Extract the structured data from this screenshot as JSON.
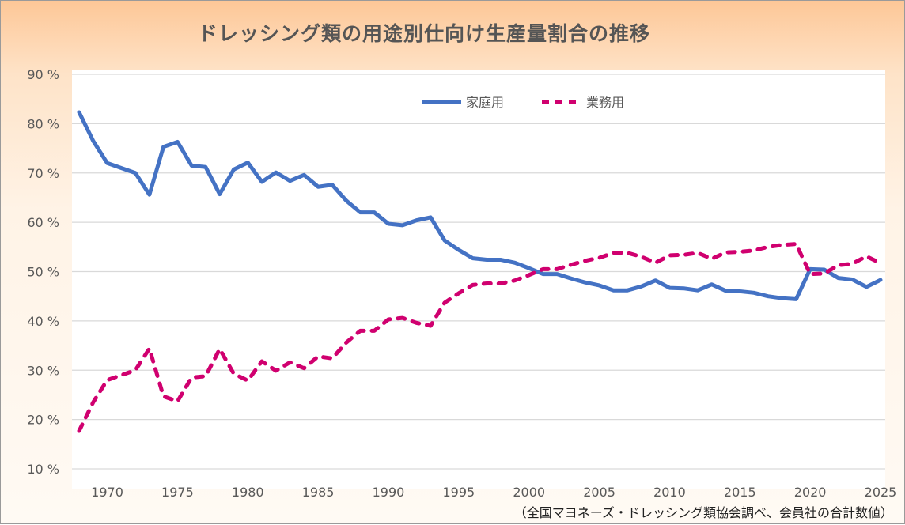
{
  "chart_data": {
    "type": "line",
    "title": "ドレッシング類の用途別仕向け生産量割合の推移",
    "source_note": "（全国マヨネーズ・ドレッシング類協会調べ、会員社の合計数値）",
    "xlabel": "",
    "ylabel": "",
    "ylim": [
      10,
      90
    ],
    "yticks": [
      10,
      20,
      30,
      40,
      50,
      60,
      70,
      80,
      90
    ],
    "ytick_labels": [
      "10 %",
      "20 %",
      "30 %",
      "40 %",
      "50 %",
      "60 %",
      "70 %",
      "80 %",
      "90 %"
    ],
    "xlim": [
      1968,
      2025
    ],
    "xticks": [
      1970,
      1975,
      1980,
      1985,
      1990,
      1995,
      2000,
      2005,
      2010,
      2015,
      2020,
      2025
    ],
    "xtick_labels": [
      "1970",
      "1975",
      "1980",
      "1985",
      "1990",
      "1995",
      "2000",
      "2005",
      "2010",
      "2015",
      "2020",
      "2025"
    ],
    "grid": true,
    "legend_position": "top-right",
    "x": [
      1968,
      1969,
      1970,
      1971,
      1972,
      1973,
      1974,
      1975,
      1976,
      1977,
      1978,
      1979,
      1980,
      1981,
      1982,
      1983,
      1984,
      1985,
      1986,
      1987,
      1988,
      1989,
      1990,
      1991,
      1992,
      1993,
      1994,
      1995,
      1996,
      1997,
      1998,
      1999,
      2000,
      2001,
      2002,
      2003,
      2004,
      2005,
      2006,
      2007,
      2008,
      2009,
      2010,
      2011,
      2012,
      2013,
      2014,
      2015,
      2016,
      2017,
      2018,
      2019,
      2020,
      2021,
      2022,
      2023,
      2024,
      2025
    ],
    "series": [
      {
        "name": "家庭用",
        "color": "#4472c4",
        "style": "solid",
        "values": [
          82.3,
          76.5,
          72,
          71,
          70,
          65.6,
          75.3,
          76.3,
          71.5,
          71.2,
          65.7,
          70.7,
          72.1,
          68.2,
          70.1,
          68.4,
          69.6,
          67.2,
          67.6,
          64.4,
          62,
          62,
          59.7,
          59.4,
          60.4,
          61,
          56.3,
          54.4,
          52.7,
          52.4,
          52.4,
          51.8,
          50.7,
          49.5,
          49.5,
          48.6,
          47.8,
          47.2,
          46.2,
          46.2,
          47,
          48.2,
          46.7,
          46.6,
          46.2,
          47.4,
          46.1,
          46,
          45.7,
          45,
          44.6,
          44.4,
          50.5,
          50.4,
          48.7,
          48.4,
          46.9,
          48.3
        ]
      },
      {
        "name": "業務用",
        "color": "#d0006f",
        "style": "dashed",
        "values": [
          17.7,
          23.5,
          28,
          29,
          30,
          34.4,
          24.7,
          23.7,
          28.5,
          28.8,
          34.3,
          29.3,
          27.9,
          31.8,
          29.9,
          31.6,
          30.4,
          32.8,
          32.4,
          35.6,
          38,
          38,
          40.3,
          40.6,
          39.6,
          39,
          43.7,
          45.6,
          47.3,
          47.6,
          47.6,
          48.2,
          49.3,
          50.5,
          50.5,
          51.4,
          52.2,
          52.8,
          53.8,
          53.8,
          53,
          51.8,
          53.3,
          53.4,
          53.8,
          52.6,
          53.9,
          54,
          54.3,
          55,
          55.4,
          55.6,
          49.5,
          49.6,
          51.3,
          51.6,
          53.1,
          51.7
        ]
      }
    ]
  }
}
